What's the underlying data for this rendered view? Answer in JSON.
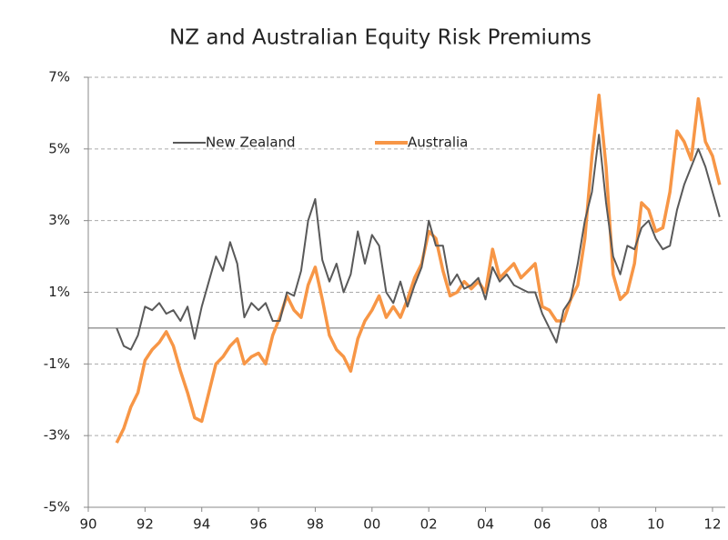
{
  "chart_data": {
    "type": "line",
    "title": "NZ and Australian Equity Risk Premiums",
    "x": [
      1991,
      1991.25,
      1991.5,
      1991.75,
      1992,
      1992.25,
      1992.5,
      1992.75,
      1993,
      1993.25,
      1993.5,
      1993.75,
      1994,
      1994.25,
      1994.5,
      1994.75,
      1995,
      1995.25,
      1995.5,
      1995.75,
      1996,
      1996.25,
      1996.5,
      1996.75,
      1997,
      1997.25,
      1997.5,
      1997.75,
      1998,
      1998.25,
      1998.5,
      1998.75,
      1999,
      1999.25,
      1999.5,
      1999.75,
      2000,
      2000.25,
      2000.5,
      2000.75,
      2001,
      2001.25,
      2001.5,
      2001.75,
      2002,
      2002.25,
      2002.5,
      2002.75,
      2003,
      2003.25,
      2003.5,
      2003.75,
      2004,
      2004.25,
      2004.5,
      2004.75,
      2005,
      2005.25,
      2005.5,
      2005.75,
      2006,
      2006.25,
      2006.5,
      2006.75,
      2007,
      2007.25,
      2007.5,
      2007.75,
      2008,
      2008.25,
      2008.5,
      2008.75,
      2009,
      2009.25,
      2009.5,
      2009.75,
      2010,
      2010.25,
      2010.5,
      2010.75,
      2011,
      2011.25,
      2011.5,
      2011.75,
      2012,
      2012.25
    ],
    "series": [
      {
        "name": "New Zealand",
        "color": "#595959",
        "values": [
          0.0,
          -0.5,
          -0.6,
          -0.2,
          0.6,
          0.5,
          0.7,
          0.4,
          0.5,
          0.2,
          0.6,
          -0.3,
          0.6,
          1.3,
          2.0,
          1.6,
          2.4,
          1.8,
          0.3,
          0.7,
          0.5,
          0.7,
          0.2,
          0.2,
          1.0,
          0.9,
          1.6,
          3.0,
          3.6,
          1.9,
          1.3,
          1.8,
          1.0,
          1.5,
          2.7,
          1.8,
          2.6,
          2.3,
          1.0,
          0.7,
          1.3,
          0.6,
          1.2,
          1.7,
          3.0,
          2.3,
          2.3,
          1.2,
          1.5,
          1.1,
          1.2,
          1.4,
          0.8,
          1.7,
          1.3,
          1.5,
          1.2,
          1.1,
          1.0,
          1.0,
          0.4,
          0.0,
          -0.4,
          0.5,
          0.8,
          1.8,
          3.0,
          3.8,
          5.4,
          3.5,
          2.0,
          1.5,
          2.3,
          2.2,
          2.8,
          3.0,
          2.5,
          2.2,
          2.3,
          3.3,
          4.0,
          4.5,
          5.0,
          4.5,
          3.8,
          3.1
        ]
      },
      {
        "name": "Australia",
        "color": "#f79646",
        "values": [
          -3.2,
          -2.8,
          -2.2,
          -1.8,
          -0.9,
          -0.6,
          -0.4,
          -0.1,
          -0.5,
          -1.2,
          -1.8,
          -2.5,
          -2.6,
          -1.8,
          -1.0,
          -0.8,
          -0.5,
          -0.3,
          -1.0,
          -0.8,
          -0.7,
          -1.0,
          -0.2,
          0.3,
          0.9,
          0.5,
          0.3,
          1.2,
          1.7,
          0.8,
          -0.2,
          -0.6,
          -0.8,
          -1.2,
          -0.3,
          0.2,
          0.5,
          0.9,
          0.3,
          0.6,
          0.3,
          0.8,
          1.4,
          1.8,
          2.7,
          2.5,
          1.6,
          0.9,
          1.0,
          1.3,
          1.1,
          1.3,
          1.0,
          2.2,
          1.4,
          1.6,
          1.8,
          1.4,
          1.6,
          1.8,
          0.6,
          0.5,
          0.2,
          0.2,
          0.8,
          1.2,
          2.5,
          4.8,
          6.5,
          4.5,
          1.5,
          0.8,
          1.0,
          1.8,
          3.5,
          3.3,
          2.7,
          2.8,
          3.8,
          5.5,
          5.2,
          4.7,
          6.4,
          5.2,
          4.8,
          4.0
        ]
      }
    ],
    "xlim": [
      1990,
      2012.45
    ],
    "xticks": [
      {
        "value": 1990,
        "label": "90"
      },
      {
        "value": 1992,
        "label": "92"
      },
      {
        "value": 1994,
        "label": "94"
      },
      {
        "value": 1996,
        "label": "96"
      },
      {
        "value": 1998,
        "label": "98"
      },
      {
        "value": 2000,
        "label": "00"
      },
      {
        "value": 2002,
        "label": "02"
      },
      {
        "value": 2004,
        "label": "04"
      },
      {
        "value": 2006,
        "label": "06"
      },
      {
        "value": 2008,
        "label": "08"
      },
      {
        "value": 2010,
        "label": "10"
      },
      {
        "value": 2012,
        "label": "12"
      }
    ],
    "ylim": [
      -5,
      7
    ],
    "yticks": [
      {
        "value": 7,
        "label": "7%"
      },
      {
        "value": 5,
        "label": "5%"
      },
      {
        "value": 3,
        "label": "3%"
      },
      {
        "value": 1,
        "label": "1%"
      },
      {
        "value": -1,
        "label": "-1%"
      },
      {
        "value": -3,
        "label": "-3%"
      },
      {
        "value": -5,
        "label": "-5%"
      }
    ],
    "grid": true,
    "legend": "top"
  }
}
